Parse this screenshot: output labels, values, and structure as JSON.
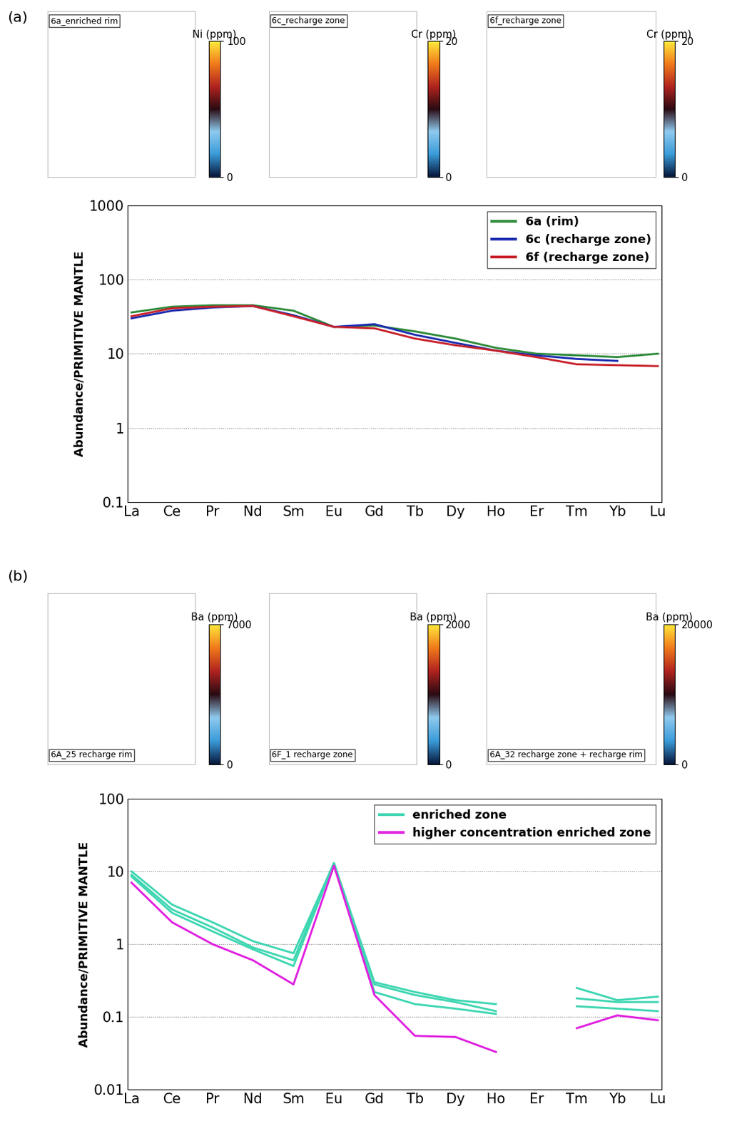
{
  "chart_data": [
    {
      "type": "line",
      "panel_label": "(a)",
      "maps": [
        {
          "title": "6a_enriched rim",
          "colorbar": {
            "label": "Ni (ppm)",
            "range": [
              0,
              100
            ],
            "ticks": [
              0,
              100
            ]
          }
        },
        {
          "title": "6c_recharge zone",
          "colorbar": {
            "label": "Cr (ppm)",
            "range": [
              0,
              20
            ],
            "ticks": [
              0,
              20
            ]
          }
        },
        {
          "title": "6f_recharge zone",
          "colorbar": {
            "label": "Cr (ppm)",
            "range": [
              0,
              20
            ],
            "ticks": [
              0,
              20
            ]
          }
        }
      ],
      "ylabel": "Abundance/PRIMITIVE MANTLE",
      "categories": [
        "La",
        "Ce",
        "Pr",
        "Nd",
        "Sm",
        "Eu",
        "Gd",
        "Tb",
        "Dy",
        "Ho",
        "Er",
        "Tm",
        "Yb",
        "Lu"
      ],
      "series": [
        {
          "name": "6a (rim)",
          "color": "#2e8b3a",
          "values": [
            36,
            43,
            45,
            45,
            38,
            23,
            24,
            20,
            16,
            12,
            10,
            9.5,
            9,
            10
          ]
        },
        {
          "name": "6c (recharge zone)",
          "color": "#1c2db0",
          "values": [
            30,
            38,
            42,
            44,
            33,
            23,
            25,
            18,
            14,
            11,
            9.5,
            8.5,
            8,
            null
          ]
        },
        {
          "name": "6f (recharge zone)",
          "color": "#c8232c",
          "values": [
            32,
            41,
            43,
            44,
            32,
            23,
            22,
            16,
            13,
            11,
            9,
            7.2,
            7,
            6.8
          ]
        }
      ],
      "ylim": [
        0.1,
        1000
      ],
      "yticks": [
        0.1,
        1,
        10,
        100,
        1000
      ],
      "log": "y",
      "grid": true,
      "legend": "upper right"
    },
    {
      "type": "line",
      "panel_label": "(b)",
      "maps": [
        {
          "title": "6A_25 recharge rim",
          "colorbar": {
            "label": "Ba (ppm)",
            "range": [
              0,
              7000
            ],
            "ticks": [
              0,
              7000
            ]
          }
        },
        {
          "title": "6F_1 recharge zone",
          "colorbar": {
            "label": "Ba (ppm)",
            "range": [
              0,
              2000
            ],
            "ticks": [
              0,
              2000
            ]
          }
        },
        {
          "title": "6A_32 recharge zone + recharge rim",
          "colorbar": {
            "label": "Ba (ppm)",
            "range": [
              0,
              20000
            ],
            "ticks": [
              0,
              20000
            ]
          }
        }
      ],
      "ylabel": "Abundance/PRIMITIVE MANTLE",
      "categories": [
        "La",
        "Ce",
        "Pr",
        "Nd",
        "Sm",
        "Eu",
        "Gd",
        "Tb",
        "Dy",
        "Ho",
        "Er",
        "Tm",
        "Yb",
        "Lu"
      ],
      "series": [
        {
          "name": "enriched zone",
          "color": "#3fd6b2",
          "values": [
            10,
            3.5,
            2.0,
            1.1,
            0.75,
            13,
            0.3,
            0.22,
            0.17,
            0.15,
            null,
            0.25,
            0.17,
            0.19
          ]
        },
        {
          "name": "enriched zone",
          "color": "#3fd6b2",
          "values": [
            9,
            3.0,
            1.7,
            0.9,
            0.6,
            13,
            0.28,
            0.2,
            0.16,
            0.12,
            null,
            0.18,
            0.16,
            0.16
          ]
        },
        {
          "name": "enriched zone",
          "color": "#3fd6b2",
          "values": [
            8.5,
            2.7,
            1.5,
            0.85,
            0.5,
            13,
            0.22,
            0.15,
            0.13,
            0.11,
            null,
            0.14,
            0.13,
            0.12
          ]
        },
        {
          "name": "higher concentration enriched zone",
          "color": "#e020e0",
          "values": [
            7,
            2.0,
            1.0,
            0.6,
            0.28,
            12,
            0.2,
            0.055,
            0.053,
            0.033,
            null,
            0.07,
            0.105,
            0.09
          ]
        }
      ],
      "ylim": [
        0.01,
        100
      ],
      "yticks": [
        0.01,
        0.1,
        1,
        10,
        100
      ],
      "log": "y",
      "grid": true,
      "legend": "upper right"
    }
  ]
}
